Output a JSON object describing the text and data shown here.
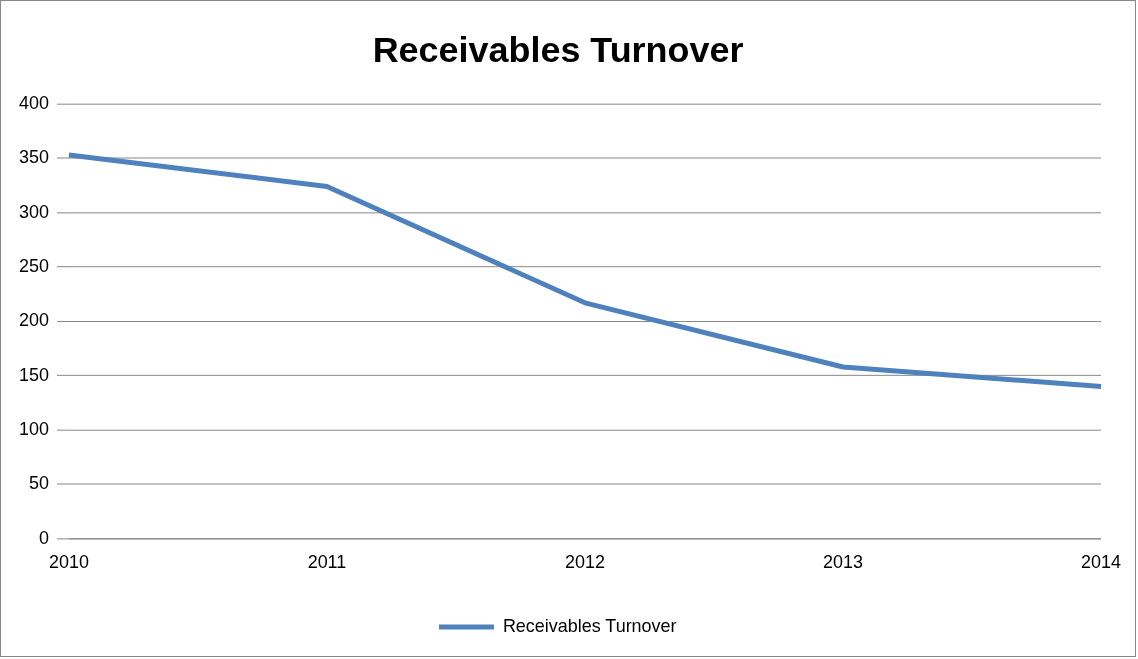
{
  "chart_data": {
    "type": "line",
    "title": "Receivables Turnover",
    "categories": [
      "2010",
      "2011",
      "2012",
      "2013",
      "2014"
    ],
    "series": [
      {
        "name": "Receivables Turnover",
        "color": "#4f81bd",
        "values": [
          353,
          324,
          217,
          158,
          140
        ]
      }
    ],
    "ylim": [
      0,
      400
    ],
    "yticks": [
      0,
      50,
      100,
      150,
      200,
      250,
      300,
      350,
      400
    ],
    "grid": "y",
    "legend": "bottom",
    "marker": "none",
    "line_style": "solid"
  }
}
